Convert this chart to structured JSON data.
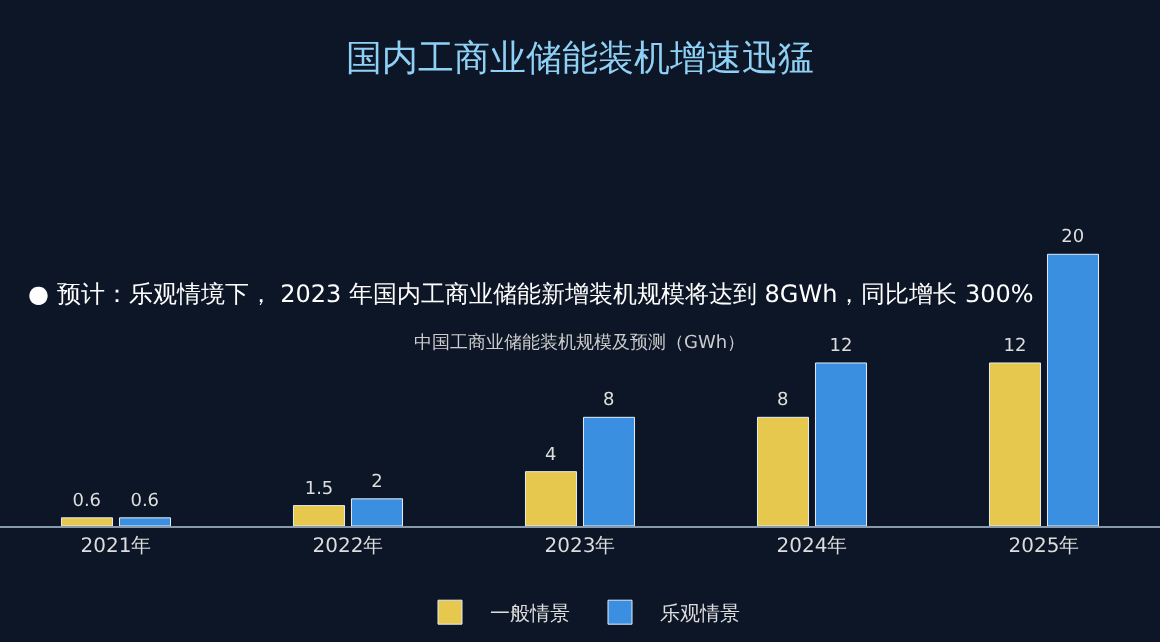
{
  "chart_data": {
    "type": "bar",
    "title": "国内工商业储能装机增速迅猛",
    "subtitle": "● 预计：乐观情境下， 2023 年国内工商业储能新增装机规模将达到 8GWh，同比增长 300%",
    "annotations": [
      "中国工商业储能装机规模及预测（GWh）"
    ],
    "categories": [
      "2021年",
      "2022年",
      "2023年",
      "2024年",
      "2025年"
    ],
    "series": [
      {
        "name": "一般情景",
        "color": "#e6c84f",
        "values": [
          0.6,
          1.5,
          4,
          8,
          12
        ]
      },
      {
        "name": "乐观情景",
        "color": "#3b8fe0",
        "values": [
          0.6,
          2,
          8,
          12,
          20
        ]
      }
    ],
    "data_labels": true,
    "legend": "bottom",
    "grid": false
  }
}
